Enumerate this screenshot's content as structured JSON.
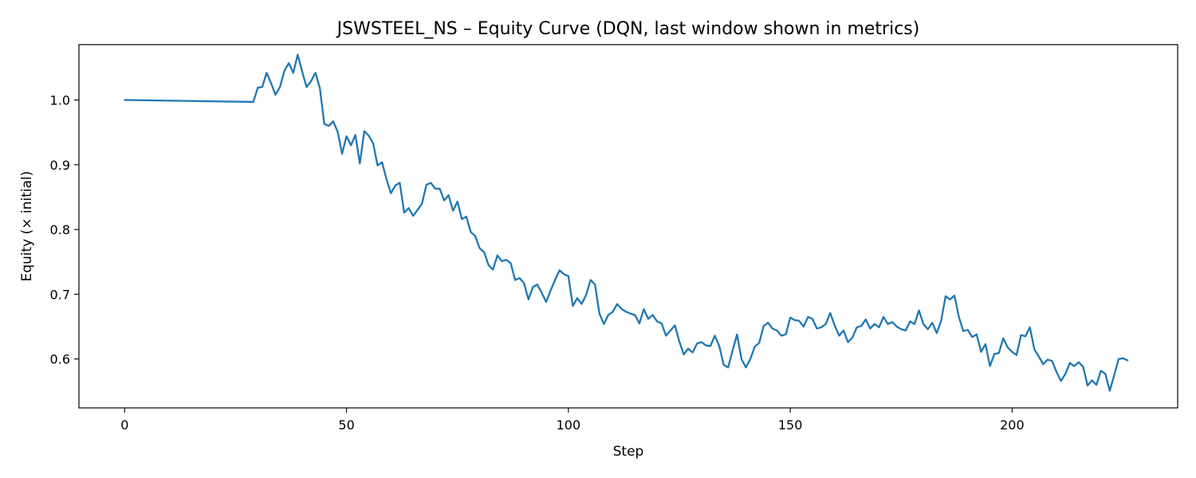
{
  "chart_data": {
    "type": "line",
    "title": "JSWSTEEL_NS – Equity Curve (DQN, last window shown in metrics)",
    "xlabel": "Step",
    "ylabel": "Equity (× initial)",
    "xlim": [
      -10.3,
      237.3
    ],
    "ylim": [
      0.5245,
      1.0855
    ],
    "xticks": [
      0,
      50,
      100,
      150,
      200
    ],
    "xtick_labels": [
      "0",
      "50",
      "100",
      "150",
      "200"
    ],
    "yticks": [
      0.6,
      0.7,
      0.8,
      0.9,
      1.0
    ],
    "ytick_labels": [
      "0.6",
      "0.7",
      "0.8",
      "0.9",
      "1.0"
    ],
    "grid": false,
    "legend": "none",
    "line_color": "#1f77b4",
    "series": [
      {
        "x": [
          0,
          29,
          30,
          31,
          32,
          33,
          34,
          35,
          36,
          37,
          38,
          39,
          40,
          41,
          42,
          43,
          44,
          45,
          46,
          47,
          48,
          49,
          50,
          51,
          52,
          53,
          54,
          55,
          56,
          57,
          58,
          59,
          60,
          61,
          62,
          63,
          64,
          65,
          66,
          67,
          68,
          69,
          70,
          71,
          72,
          73,
          74,
          75,
          76,
          77,
          78,
          79,
          80,
          81,
          82,
          83,
          84,
          85,
          86,
          87,
          88,
          89,
          90,
          91,
          92,
          93,
          94,
          95,
          96,
          97,
          98,
          99,
          100,
          101,
          102,
          103,
          104,
          105,
          106,
          107,
          108,
          109,
          110,
          111,
          112,
          113,
          114,
          115,
          116,
          117,
          118,
          119,
          120,
          121,
          122,
          123,
          124,
          125,
          126,
          127,
          128,
          129,
          130,
          131,
          132,
          133,
          134,
          135,
          136,
          137,
          138,
          139,
          140,
          141,
          142,
          143,
          144,
          145,
          146,
          147,
          148,
          149,
          150,
          151,
          152,
          153,
          154,
          155,
          156,
          157,
          158,
          159,
          160,
          161,
          162,
          163,
          164,
          165,
          166,
          167,
          168,
          169,
          170,
          171,
          172,
          173,
          174,
          175,
          176,
          177,
          178,
          179,
          180,
          181,
          182,
          183,
          184,
          185,
          186,
          187,
          188,
          189,
          190,
          191,
          192,
          193,
          194,
          195,
          196,
          197,
          198,
          199,
          200,
          201,
          202,
          203,
          204,
          205,
          206,
          207,
          208,
          209,
          210,
          211,
          212,
          213,
          214,
          215,
          216,
          217,
          218,
          219,
          220,
          221,
          222,
          223,
          224,
          225,
          226
        ],
        "y": [
          1.0,
          0.997,
          1.019,
          1.02,
          1.042,
          1.026,
          1.008,
          1.02,
          1.045,
          1.057,
          1.042,
          1.07,
          1.044,
          1.02,
          1.029,
          1.042,
          1.018,
          0.963,
          0.96,
          0.967,
          0.951,
          0.917,
          0.944,
          0.93,
          0.946,
          0.902,
          0.952,
          0.945,
          0.933,
          0.899,
          0.904,
          0.878,
          0.856,
          0.868,
          0.872,
          0.826,
          0.833,
          0.821,
          0.83,
          0.84,
          0.869,
          0.872,
          0.863,
          0.863,
          0.845,
          0.853,
          0.829,
          0.843,
          0.816,
          0.82,
          0.796,
          0.79,
          0.771,
          0.765,
          0.745,
          0.738,
          0.76,
          0.751,
          0.753,
          0.748,
          0.722,
          0.725,
          0.717,
          0.692,
          0.711,
          0.715,
          0.702,
          0.688,
          0.706,
          0.722,
          0.737,
          0.731,
          0.728,
          0.682,
          0.694,
          0.685,
          0.699,
          0.722,
          0.715,
          0.67,
          0.654,
          0.668,
          0.673,
          0.685,
          0.677,
          0.673,
          0.67,
          0.668,
          0.655,
          0.677,
          0.662,
          0.668,
          0.658,
          0.655,
          0.636,
          0.644,
          0.652,
          0.627,
          0.607,
          0.616,
          0.61,
          0.624,
          0.626,
          0.621,
          0.62,
          0.636,
          0.62,
          0.591,
          0.587,
          0.613,
          0.638,
          0.6,
          0.587,
          0.6,
          0.619,
          0.625,
          0.651,
          0.656,
          0.647,
          0.644,
          0.636,
          0.638,
          0.664,
          0.66,
          0.659,
          0.65,
          0.665,
          0.662,
          0.647,
          0.649,
          0.654,
          0.671,
          0.652,
          0.636,
          0.644,
          0.626,
          0.633,
          0.649,
          0.651,
          0.661,
          0.647,
          0.654,
          0.649,
          0.665,
          0.654,
          0.657,
          0.65,
          0.646,
          0.644,
          0.658,
          0.654,
          0.675,
          0.654,
          0.646,
          0.656,
          0.64,
          0.659,
          0.697,
          0.692,
          0.698,
          0.665,
          0.643,
          0.645,
          0.634,
          0.638,
          0.611,
          0.623,
          0.589,
          0.608,
          0.609,
          0.632,
          0.618,
          0.611,
          0.606,
          0.637,
          0.635,
          0.649,
          0.615,
          0.604,
          0.592,
          0.599,
          0.597,
          0.58,
          0.566,
          0.577,
          0.594,
          0.589,
          0.595,
          0.588,
          0.559,
          0.567,
          0.56,
          0.582,
          0.577,
          0.551,
          0.575,
          0.6,
          0.601,
          0.598
        ]
      }
    ]
  }
}
